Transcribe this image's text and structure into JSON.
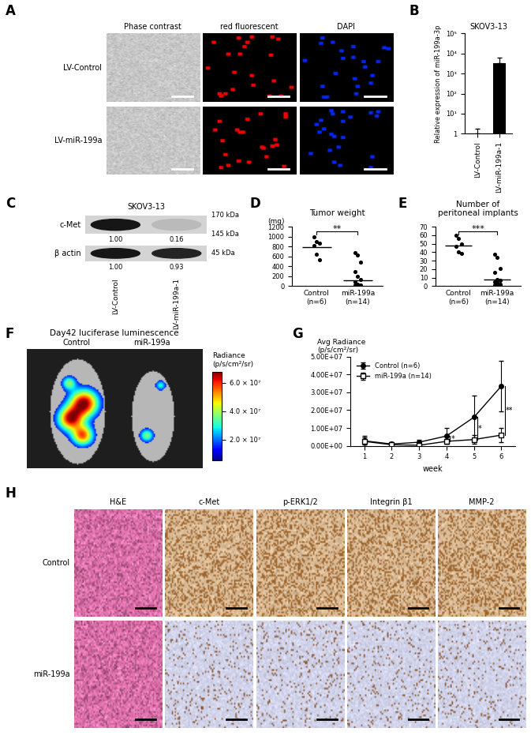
{
  "chart_data": [
    {
      "label": "A",
      "type": "image_grid",
      "rows": [
        "LV-Control",
        "LV-miR-199a"
      ],
      "columns": [
        "Phase contrast",
        "red fluorescent",
        "DAPI"
      ]
    },
    {
      "label": "B",
      "type": "bar",
      "title": "SKOV3-13",
      "y_label": "Relative expression of miR-199a-3p",
      "categories": [
        "LV-Control",
        "LV-miR-199a-1"
      ],
      "values": [
        1,
        3200
      ],
      "errors": [
        0.8,
        2800
      ],
      "color": "#000000",
      "log": "y",
      "ylim": [
        1,
        100000
      ],
      "yticks": [
        1,
        {
          "value": 10,
          "label": "10¹"
        },
        {
          "value": 100,
          "label": "10²"
        },
        {
          "value": 1000,
          "label": "10³"
        },
        {
          "value": 10000,
          "label": "10⁴"
        },
        {
          "value": 100000,
          "label": "10⁵"
        }
      ]
    },
    {
      "label": "C",
      "type": "western_blot",
      "title": "SKOV3-13",
      "lanes": [
        "LV-Control",
        "LV-miR-199a-1"
      ],
      "bands": [
        {
          "name": "c-Met",
          "sizes": [
            "170 kDa",
            "145 kDa"
          ],
          "quantities": [
            "1.00",
            "0.16"
          ]
        },
        {
          "name": "β actin",
          "sizes": [
            "45 kDa"
          ],
          "quantities": [
            "1.00",
            "0.93"
          ]
        }
      ]
    },
    {
      "label": "D",
      "type": "dot",
      "title": "Tumor weight",
      "y_label": "(mg)",
      "categories": [
        "Control\n(n=6)",
        "miR-199a\n(n=14)"
      ],
      "points": [
        [
          1000,
          900,
          870,
          810,
          640,
          530
        ],
        [
          680,
          620,
          490,
          290,
          190,
          130,
          90,
          40,
          25,
          15,
          10,
          5,
          0,
          0
        ]
      ],
      "median": [
        790,
        120
      ],
      "significance": "**",
      "color": "#000000",
      "ylim": [
        0,
        1200
      ],
      "yticks": [
        0,
        200,
        400,
        600,
        800,
        1000,
        1200
      ]
    },
    {
      "label": "E",
      "type": "dot",
      "title": "Number of\nperitoneal implants",
      "categories": [
        "Control\n(n=6)",
        "miR-199a\n(n=14)"
      ],
      "points": [
        [
          60,
          56,
          50,
          47,
          40,
          38
        ],
        [
          37,
          34,
          21,
          16,
          8,
          7,
          5,
          4,
          2,
          1,
          1,
          0,
          0,
          0
        ]
      ],
      "median": [
        48,
        8
      ],
      "significance": "***",
      "color": "#000000",
      "ylim": [
        0,
        70
      ],
      "yticks": [
        0,
        10,
        20,
        30,
        40,
        50,
        60,
        70
      ]
    },
    {
      "label": "F",
      "type": "image_colorbar",
      "title": "Day42 luciferase luminescence",
      "groups": [
        "Control",
        "miR-199a"
      ],
      "colorbar_title": "Radiance\n(p/s/cm²/sr)",
      "colorbar_range": [
        5000000,
        68000000
      ],
      "colorbar_ticks": [
        {
          "value": 20000000,
          "label": "2.0 × 10⁷"
        },
        {
          "value": 40000000,
          "label": "4.0 × 10⁷"
        },
        {
          "value": 60000000,
          "label": "6.0 × 10⁷"
        }
      ]
    },
    {
      "label": "G",
      "type": "line",
      "y_label": "Avg Radiance\n(p/s/cm²/sr)",
      "x_label": "week",
      "x": [
        1,
        2,
        3,
        4,
        5,
        6
      ],
      "xlim": [
        0.5,
        6.5
      ],
      "xticks": [
        1,
        2,
        3,
        4,
        5,
        6
      ],
      "ylim": [
        0,
        50000000
      ],
      "yticks": [
        {
          "value": 0,
          "label": "0.00E+00"
        },
        {
          "value": 10000000,
          "label": "1.00E+07"
        },
        {
          "value": 20000000,
          "label": "2.00E+07"
        },
        {
          "value": 30000000,
          "label": "3.00E+07"
        },
        {
          "value": 40000000,
          "label": "4.00E+07"
        },
        {
          "value": 50000000,
          "label": "5.00E+07"
        }
      ],
      "legend": "upper left",
      "series": [
        {
          "name": "Control (n=6)",
          "color": "#000000",
          "marker": "circle",
          "line_style": "solid",
          "values": [
            2800000,
            1000000,
            2000000,
            5500000,
            16000000,
            33500000
          ],
          "errors": [
            2800000,
            1000000,
            1500000,
            4500000,
            12000000,
            14000000
          ]
        },
        {
          "name": "miR-199a (n=14)",
          "color": "#000000",
          "marker": "open square",
          "line_style": "solid",
          "values": [
            2500000,
            600000,
            300000,
            2500000,
            3500000,
            6000000
          ],
          "errors": [
            2000000,
            500000,
            500000,
            1500000,
            2500000,
            4000000
          ]
        }
      ],
      "significance": [
        {
          "x": 4,
          "text": "*"
        },
        {
          "x": 5,
          "text": "*"
        },
        {
          "x": 6,
          "text": "**"
        }
      ]
    },
    {
      "label": "H",
      "type": "image_grid",
      "rows": [
        "Control",
        "miR-199a"
      ],
      "columns": [
        "H&E",
        "c-Met",
        "p-ERK1/2",
        "Integrin β1",
        "MMP-2"
      ]
    }
  ]
}
